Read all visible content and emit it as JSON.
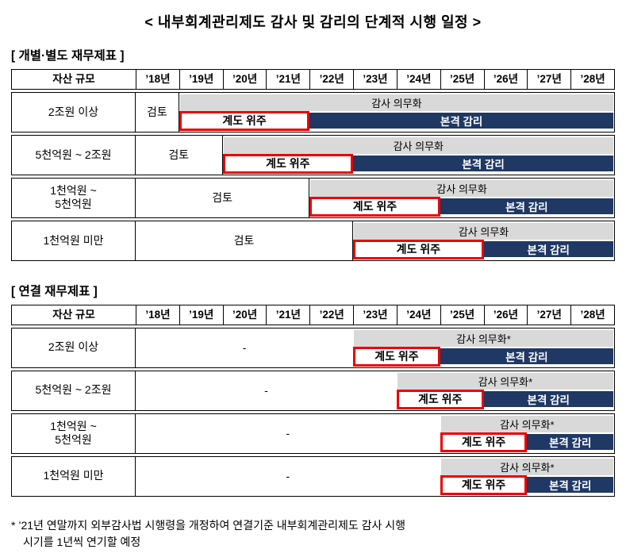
{
  "title": "< 내부회계관리제도 감사 및 감리의 단계적 시행 일정 >",
  "header_label": "자산 규모",
  "years": [
    "’18년",
    "’19년",
    "’20년",
    "’21년",
    "’22년",
    "’23년",
    "’24년",
    "’25년",
    "’26년",
    "’27년",
    "’28년"
  ],
  "labels": {
    "guide": "계도 위주",
    "full": "본격 감리"
  },
  "colors": {
    "navy": "#1f3864",
    "gray": "#d9d9d9",
    "red": "#ee0000"
  },
  "tables": [
    {
      "section": "[ 개별·별도 재무제표 ]",
      "rows": [
        {
          "label": "2조원 이상",
          "pre": "검토",
          "pre_span": 1,
          "audit": "감사 의무화",
          "guide_span": 3,
          "full_span": 7
        },
        {
          "label": "5천억원 ~ 2조원",
          "pre": "검토",
          "pre_span": 2,
          "audit": "감사 의무화",
          "guide_span": 3,
          "full_span": 6
        },
        {
          "label": "1천억원 ~\n5천억원",
          "pre": "검토",
          "pre_span": 4,
          "audit": "감사 의무화",
          "guide_span": 3,
          "full_span": 4
        },
        {
          "label": "1천억원 미만",
          "pre": "검토",
          "pre_span": 5,
          "audit": "감사 의무화",
          "guide_span": 3,
          "full_span": 3
        }
      ]
    },
    {
      "section": "[ 연결 재무제표 ]",
      "rows": [
        {
          "label": "2조원 이상",
          "pre": "-",
          "pre_span": 5,
          "audit": "감사 의무화*",
          "guide_span": 2,
          "full_span": 4
        },
        {
          "label": "5천억원 ~ 2조원",
          "pre": "-",
          "pre_span": 6,
          "audit": "감사 의무화*",
          "guide_span": 2,
          "full_span": 3
        },
        {
          "label": "1천억원 ~\n5천억원",
          "pre": "-",
          "pre_span": 7,
          "audit": "감사 의무화*",
          "guide_span": 2,
          "full_span": 2
        },
        {
          "label": "1천억원 미만",
          "pre": "-",
          "pre_span": 7,
          "audit": "감사 의무화*",
          "guide_span": 2,
          "full_span": 2
        }
      ]
    }
  ],
  "footnote": {
    "line1": "* ’21년 연말까지 외부감사법 시행령을 개정하여 연결기준 내부회계관리제도 감사 시행",
    "line2": "시기를 1년씩 연기할 예정"
  }
}
